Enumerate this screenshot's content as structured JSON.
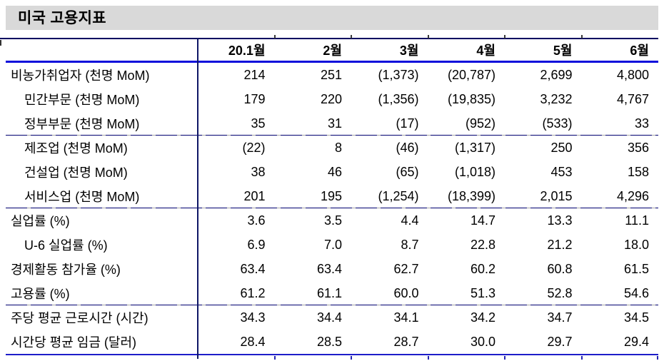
{
  "title": "미국 고용지표",
  "table": {
    "columns": [
      "20.1월",
      "2월",
      "3월",
      "4월",
      "5월",
      "6월"
    ],
    "rows": [
      {
        "label": "비농가취업자 (천명 MoM)",
        "indent": false,
        "divider_after": false,
        "values": [
          "214",
          "251",
          "(1,373)",
          "(20,787)",
          "2,699",
          "4,800"
        ]
      },
      {
        "label": "민간부문 (천명 MoM)",
        "indent": true,
        "divider_after": false,
        "values": [
          "179",
          "220",
          "(1,356)",
          "(19,835)",
          "3,232",
          "4,767"
        ]
      },
      {
        "label": "정부부문 (천명 MoM)",
        "indent": true,
        "divider_after": true,
        "values": [
          "35",
          "31",
          "(17)",
          "(952)",
          "(533)",
          "33"
        ]
      },
      {
        "label": "제조업 (천명 MoM)",
        "indent": true,
        "divider_after": false,
        "values": [
          "(22)",
          "8",
          "(46)",
          "(1,317)",
          "250",
          "356"
        ]
      },
      {
        "label": "건설업 (천명 MoM)",
        "indent": true,
        "divider_after": false,
        "values": [
          "38",
          "46",
          "(65)",
          "(1,018)",
          "453",
          "158"
        ]
      },
      {
        "label": "서비스업 (천명 MoM)",
        "indent": true,
        "divider_after": true,
        "values": [
          "201",
          "195",
          "(1,254)",
          "(18,399)",
          "2,015",
          "4,296"
        ]
      },
      {
        "label": "실업률 (%)",
        "indent": false,
        "divider_after": false,
        "values": [
          "3.6",
          "3.5",
          "4.4",
          "14.7",
          "13.3",
          "11.1"
        ]
      },
      {
        "label": "U-6 실업률 (%)",
        "indent": true,
        "divider_after": false,
        "values": [
          "6.9",
          "7.0",
          "8.7",
          "22.8",
          "21.2",
          "18.0"
        ]
      },
      {
        "label": "경제활동 참가율 (%)",
        "indent": false,
        "divider_after": false,
        "values": [
          "63.4",
          "63.4",
          "62.7",
          "60.2",
          "60.8",
          "61.5"
        ]
      },
      {
        "label": "고용률 (%)",
        "indent": false,
        "divider_after": true,
        "values": [
          "61.2",
          "61.1",
          "60.0",
          "51.3",
          "52.8",
          "54.6"
        ]
      },
      {
        "label": "주당 평균 근로시간 (시간)",
        "indent": false,
        "divider_after": false,
        "values": [
          "34.3",
          "34.4",
          "34.1",
          "34.2",
          "34.7",
          "34.5"
        ]
      },
      {
        "label": "시간당 평균 임금 (달러)",
        "indent": false,
        "divider_after": false,
        "values": [
          "28.4",
          "28.5",
          "28.7",
          "30.0",
          "29.7",
          "29.4"
        ]
      }
    ]
  },
  "colors": {
    "title_bar_bg": "#d9d9d9",
    "header_thick_rule": "#0b0bdb",
    "top_thin_rule": "#000060",
    "group_divider": "#000070",
    "bottom_rule": "#1d1dc9",
    "vertical_divider": "#0e1666",
    "text": "#000000"
  }
}
